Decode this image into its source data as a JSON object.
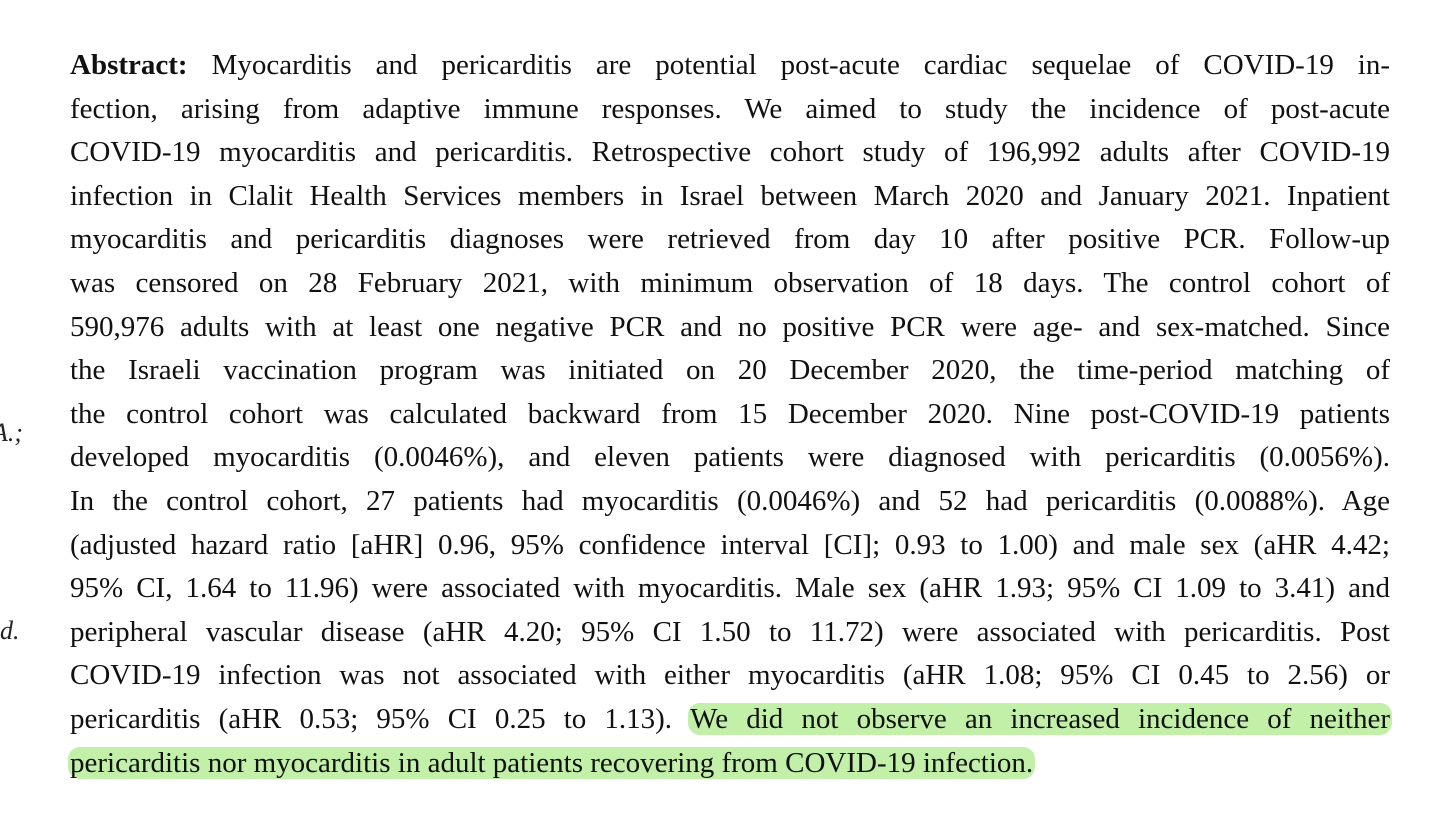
{
  "abstract": {
    "label": "Abstract:",
    "lines": [
      "Myocarditis and pericarditis are potential post-acute cardiac sequelae of COVID-19 in-",
      "fection, arising from adaptive immune responses.  We aimed to study the incidence of post-acute",
      "COVID-19 myocarditis and pericarditis. Retrospective cohort study of 196,992 adults after COVID-19",
      "infection in Clalit Health Services members in Israel between March 2020 and January 2021. Inpatient",
      "myocarditis and pericarditis diagnoses were retrieved from day 10 after positive PCR. Follow-up",
      "was censored on 28 February 2021, with minimum observation of 18 days.  The control cohort of",
      "590,976 adults with at least one negative PCR and no positive PCR were age- and sex-matched. Since",
      "the Israeli vaccination program was initiated on 20 December 2020, the time-period matching of",
      "the control cohort was calculated backward from 15 December 2020. Nine post-COVID-19 patients",
      "developed myocarditis (0.0046%), and eleven patients were diagnosed with pericarditis (0.0056%).",
      "In the control cohort, 27 patients had myocarditis (0.0046%) and 52 had pericarditis (0.0088%). Age",
      "(adjusted hazard ratio [aHR] 0.96, 95% confidence interval [CI]; 0.93 to 1.00) and male sex (aHR 4.42;",
      "95% CI, 1.64 to 11.96) were associated with myocarditis. Male sex (aHR 1.93; 95% CI 1.09 to 3.41) and",
      "peripheral vascular disease (aHR 4.20; 95% CI 1.50 to 11.72) were associated with pericarditis. Post",
      "COVID-19 infection was not associated with either myocarditis (aHR 1.08; 95% CI 0.45 to 2.56) or",
      "pericarditis (aHR 0.53; 95% CI 0.25 to 1.13)."
    ]
  },
  "highlight": {
    "lines": [
      "We did not observe an increased incidence of neither",
      "pericarditis nor myocarditis in adult patients recovering from COVID-19 infection."
    ]
  },
  "margin_notes": [
    "A.;",
    "d."
  ]
}
